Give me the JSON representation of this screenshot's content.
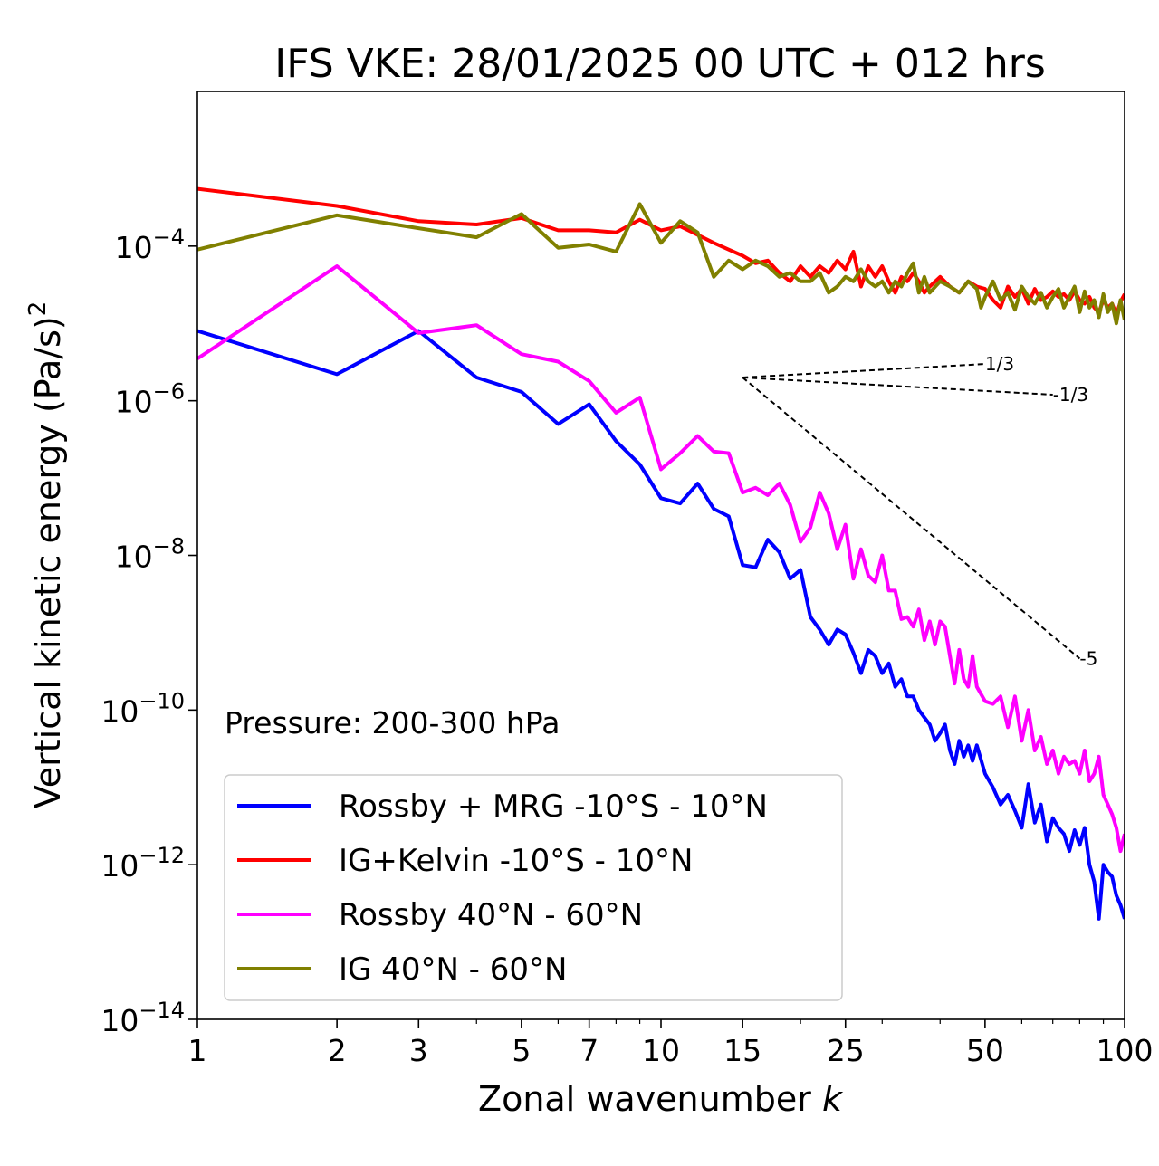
{
  "chart_data": {
    "type": "line",
    "title": "IFS VKE: 28/01/2025 00 UTC + 012 hrs",
    "xlabel": "Zonal wavenumber",
    "xlabel_var": "k",
    "ylabel": "Vertical kinetic energy (Pa/s)",
    "ylabel_exponent": "2",
    "xscale": "log",
    "yscale": "log",
    "xlim": [
      1,
      100
    ],
    "ylim": [
      1e-14,
      0.01
    ],
    "x_ticks": [
      1,
      2,
      3,
      5,
      7,
      10,
      15,
      25,
      50,
      100
    ],
    "x_tick_labels": [
      "1",
      "2",
      "3",
      "5",
      "7",
      "10",
      "15",
      "25",
      "50",
      "100"
    ],
    "y_ticks": [
      1e-14,
      1e-12,
      1e-10,
      1e-08,
      1e-06,
      0.0001
    ],
    "y_tick_base": "10",
    "y_tick_exponents": [
      "−14",
      "−12",
      "−10",
      "−8",
      "−6",
      "−4"
    ],
    "annotation": "Pressure: 200-300 hPa",
    "legend_placement": "lower-left",
    "grid": false,
    "series": [
      {
        "name": "Rossby + MRG -10°S - 10°N",
        "color": "#0000ff",
        "points": [
          [
            1,
            8e-06
          ],
          [
            2,
            2.2e-06
          ],
          [
            3,
            8e-06
          ],
          [
            4,
            2e-06
          ],
          [
            5,
            1.3e-06
          ],
          [
            6,
            5e-07
          ],
          [
            7,
            9e-07
          ],
          [
            8,
            3e-07
          ],
          [
            9,
            1.5e-07
          ],
          [
            10,
            5.5e-08
          ],
          [
            11,
            4.7e-08
          ],
          [
            12,
            8.5e-08
          ],
          [
            13,
            4e-08
          ],
          [
            14,
            3.2e-08
          ],
          [
            15,
            7.5e-09
          ],
          [
            16,
            7e-09
          ],
          [
            17,
            1.6e-08
          ],
          [
            18,
            1.1e-08
          ],
          [
            19,
            5e-09
          ],
          [
            20,
            6.5e-09
          ],
          [
            21,
            1.6e-09
          ],
          [
            22,
            1.1e-09
          ],
          [
            23,
            7e-10
          ],
          [
            24,
            1.1e-09
          ],
          [
            25,
            9.5e-10
          ],
          [
            26,
            5.5e-10
          ],
          [
            27,
            3e-10
          ],
          [
            28,
            6e-10
          ],
          [
            29,
            5e-10
          ],
          [
            30,
            3e-10
          ],
          [
            31,
            4e-10
          ],
          [
            32,
            2e-10
          ],
          [
            33,
            2.5e-10
          ],
          [
            34,
            1.5e-10
          ],
          [
            35,
            1.5e-10
          ],
          [
            36,
            1e-10
          ],
          [
            37,
            8e-11
          ],
          [
            38,
            6.5e-11
          ],
          [
            39,
            4e-11
          ],
          [
            40,
            5e-11
          ],
          [
            41,
            6.5e-11
          ],
          [
            42,
            3e-11
          ],
          [
            43,
            2e-11
          ],
          [
            44,
            4e-11
          ],
          [
            45,
            2.5e-11
          ],
          [
            46,
            3.5e-11
          ],
          [
            47,
            2.2e-11
          ],
          [
            48,
            3.5e-11
          ],
          [
            50,
            1.5e-11
          ],
          [
            52,
            1e-11
          ],
          [
            54,
            6e-12
          ],
          [
            56,
            8e-12
          ],
          [
            58,
            5e-12
          ],
          [
            60,
            3e-12
          ],
          [
            62,
            1.1e-11
          ],
          [
            64,
            3.5e-12
          ],
          [
            66,
            6e-12
          ],
          [
            68,
            2e-12
          ],
          [
            70,
            4e-12
          ],
          [
            72,
            3e-12
          ],
          [
            74,
            2.5e-12
          ],
          [
            76,
            1.5e-12
          ],
          [
            78,
            2.8e-12
          ],
          [
            80,
            1.8e-12
          ],
          [
            82,
            3e-12
          ],
          [
            84,
            1e-12
          ],
          [
            86,
            6e-13
          ],
          [
            88,
            2e-13
          ],
          [
            90,
            1e-12
          ],
          [
            92,
            8e-13
          ],
          [
            94,
            7e-13
          ],
          [
            96,
            4e-13
          ],
          [
            98,
            3e-13
          ],
          [
            100,
            2e-13
          ]
        ]
      },
      {
        "name": "IG+Kelvin -10°S - 10°N",
        "color": "#ff0000",
        "points": [
          [
            1,
            0.00055
          ],
          [
            2,
            0.00033
          ],
          [
            3,
            0.00021
          ],
          [
            4,
            0.00019
          ],
          [
            5,
            0.00023
          ],
          [
            6,
            0.00016
          ],
          [
            7,
            0.00016
          ],
          [
            8,
            0.00015
          ],
          [
            9,
            0.00022
          ],
          [
            10,
            0.00016
          ],
          [
            11,
            0.00018
          ],
          [
            12,
            0.00014
          ],
          [
            13,
            0.00011
          ],
          [
            14,
            9e-05
          ],
          [
            15,
            7.5e-05
          ],
          [
            16,
            6e-05
          ],
          [
            17,
            6.5e-05
          ],
          [
            18,
            4.5e-05
          ],
          [
            19,
            3.5e-05
          ],
          [
            20,
            5.5e-05
          ],
          [
            21,
            4e-05
          ],
          [
            22,
            5.5e-05
          ],
          [
            23,
            4.5e-05
          ],
          [
            24,
            6.5e-05
          ],
          [
            25,
            5e-05
          ],
          [
            26,
            8.5e-05
          ],
          [
            27,
            3e-05
          ],
          [
            28,
            5.5e-05
          ],
          [
            29,
            4e-05
          ],
          [
            30,
            5.5e-05
          ],
          [
            31,
            3.5e-05
          ],
          [
            32,
            2.5e-05
          ],
          [
            33,
            4e-05
          ],
          [
            34,
            3.5e-05
          ],
          [
            35,
            4.5e-05
          ],
          [
            36,
            3.5e-05
          ],
          [
            37,
            2.5e-05
          ],
          [
            38,
            3e-05
          ],
          [
            40,
            4e-05
          ],
          [
            42,
            3e-05
          ],
          [
            44,
            2.5e-05
          ],
          [
            46,
            3.5e-05
          ],
          [
            48,
            3e-05
          ],
          [
            50,
            2.8e-05
          ],
          [
            52,
            2e-05
          ],
          [
            54,
            1.6e-05
          ],
          [
            56,
            3e-05
          ],
          [
            58,
            2.2e-05
          ],
          [
            60,
            2.8e-05
          ],
          [
            62,
            1.8e-05
          ],
          [
            64,
            2.8e-05
          ],
          [
            66,
            2e-05
          ],
          [
            68,
            2.2e-05
          ],
          [
            70,
            2.6e-05
          ],
          [
            72,
            2.2e-05
          ],
          [
            74,
            2.4e-05
          ],
          [
            76,
            2e-05
          ],
          [
            78,
            2.6e-05
          ],
          [
            80,
            2e-05
          ],
          [
            82,
            1.8e-05
          ],
          [
            84,
            2.2e-05
          ],
          [
            86,
            1.6e-05
          ],
          [
            88,
            1.4e-05
          ],
          [
            90,
            2e-05
          ],
          [
            92,
            1.6e-05
          ],
          [
            94,
            1.8e-05
          ],
          [
            96,
            1.3e-05
          ],
          [
            98,
            1.9e-05
          ],
          [
            100,
            2.4e-05
          ]
        ]
      },
      {
        "name": "Rossby 40°N - 60°N",
        "color": "#ff00ff",
        "points": [
          [
            1,
            3.5e-06
          ],
          [
            2,
            5.5e-05
          ],
          [
            3,
            7.5e-06
          ],
          [
            4,
            9.5e-06
          ],
          [
            5,
            4e-06
          ],
          [
            6,
            3.2e-06
          ],
          [
            7,
            1.8e-06
          ],
          [
            8,
            7e-07
          ],
          [
            9,
            1.1e-06
          ],
          [
            10,
            1.3e-07
          ],
          [
            11,
            2.1e-07
          ],
          [
            12,
            3.5e-07
          ],
          [
            13,
            2.2e-07
          ],
          [
            14,
            2.1e-07
          ],
          [
            15,
            6.5e-08
          ],
          [
            16,
            7.5e-08
          ],
          [
            17,
            6e-08
          ],
          [
            18,
            8.5e-08
          ],
          [
            19,
            4.5e-08
          ],
          [
            20,
            1.5e-08
          ],
          [
            21,
            2.3e-08
          ],
          [
            22,
            6.5e-08
          ],
          [
            23,
            3.5e-08
          ],
          [
            24,
            1.2e-08
          ],
          [
            25,
            2.5e-08
          ],
          [
            26,
            5e-09
          ],
          [
            27,
            1.2e-08
          ],
          [
            28,
            5.5e-09
          ],
          [
            29,
            4.5e-09
          ],
          [
            30,
            1e-08
          ],
          [
            31,
            3.5e-09
          ],
          [
            32,
            3.5e-09
          ],
          [
            33,
            1.5e-09
          ],
          [
            34,
            1.6e-09
          ],
          [
            35,
            1.2e-09
          ],
          [
            36,
            2e-09
          ],
          [
            37,
            8e-10
          ],
          [
            38,
            1.4e-09
          ],
          [
            39,
            7e-10
          ],
          [
            40,
            1.4e-09
          ],
          [
            41,
            1.2e-09
          ],
          [
            42,
            5e-10
          ],
          [
            43,
            2.2e-10
          ],
          [
            44,
            6e-10
          ],
          [
            45,
            2.5e-10
          ],
          [
            46,
            2e-10
          ],
          [
            47,
            5e-10
          ],
          [
            48,
            2e-10
          ],
          [
            50,
            1.3e-10
          ],
          [
            52,
            1.2e-10
          ],
          [
            54,
            1.5e-10
          ],
          [
            56,
            6e-11
          ],
          [
            58,
            1.5e-10
          ],
          [
            60,
            4e-11
          ],
          [
            62,
            1e-10
          ],
          [
            64,
            3e-11
          ],
          [
            66,
            4.5e-11
          ],
          [
            68,
            2e-11
          ],
          [
            70,
            3e-11
          ],
          [
            72,
            1.5e-11
          ],
          [
            74,
            2.5e-11
          ],
          [
            76,
            2e-11
          ],
          [
            78,
            2.2e-11
          ],
          [
            80,
            1.5e-11
          ],
          [
            82,
            3e-11
          ],
          [
            84,
            1.2e-11
          ],
          [
            86,
            1.5e-11
          ],
          [
            88,
            2.5e-11
          ],
          [
            90,
            8e-12
          ],
          [
            92,
            6e-12
          ],
          [
            94,
            4.5e-12
          ],
          [
            96,
            3e-12
          ],
          [
            98,
            1.5e-12
          ],
          [
            100,
            2.5e-12
          ]
        ]
      },
      {
        "name": "IG 40°N - 60°N",
        "color": "#808000",
        "points": [
          [
            1,
            9e-05
          ],
          [
            2,
            0.00025
          ],
          [
            3,
            0.00017
          ],
          [
            4,
            0.00013
          ],
          [
            5,
            0.00026
          ],
          [
            6,
            9.5e-05
          ],
          [
            7,
            0.000105
          ],
          [
            8,
            8.5e-05
          ],
          [
            9,
            0.00035
          ],
          [
            10,
            0.00011
          ],
          [
            11,
            0.00021
          ],
          [
            12,
            0.00015
          ],
          [
            13,
            4e-05
          ],
          [
            14,
            6.5e-05
          ],
          [
            15,
            5e-05
          ],
          [
            16,
            6.5e-05
          ],
          [
            17,
            5.5e-05
          ],
          [
            18,
            4e-05
          ],
          [
            19,
            4.5e-05
          ],
          [
            20,
            3.5e-05
          ],
          [
            21,
            3.5e-05
          ],
          [
            22,
            4.5e-05
          ],
          [
            23,
            2.5e-05
          ],
          [
            24,
            3e-05
          ],
          [
            25,
            4e-05
          ],
          [
            26,
            3.5e-05
          ],
          [
            27,
            5e-05
          ],
          [
            28,
            3.5e-05
          ],
          [
            29,
            3e-05
          ],
          [
            30,
            3.5e-05
          ],
          [
            31,
            2.5e-05
          ],
          [
            32,
            3.5e-05
          ],
          [
            33,
            3e-05
          ],
          [
            34,
            4.5e-05
          ],
          [
            35,
            6e-05
          ],
          [
            36,
            2.5e-05
          ],
          [
            37,
            4e-05
          ],
          [
            38,
            2.5e-05
          ],
          [
            40,
            3.5e-05
          ],
          [
            42,
            3e-05
          ],
          [
            44,
            2.5e-05
          ],
          [
            46,
            3.5e-05
          ],
          [
            48,
            2.8e-05
          ],
          [
            49,
            1.6e-05
          ],
          [
            50,
            2.2e-05
          ],
          [
            52,
            3.5e-05
          ],
          [
            54,
            2e-05
          ],
          [
            56,
            2.5e-05
          ],
          [
            58,
            1.5e-05
          ],
          [
            60,
            3e-05
          ],
          [
            62,
            2.2e-05
          ],
          [
            64,
            1.8e-05
          ],
          [
            66,
            2.5e-05
          ],
          [
            68,
            1.6e-05
          ],
          [
            70,
            2.2e-05
          ],
          [
            72,
            2.8e-05
          ],
          [
            74,
            1.6e-05
          ],
          [
            76,
            2.2e-05
          ],
          [
            78,
            3e-05
          ],
          [
            80,
            1.4e-05
          ],
          [
            82,
            2.6e-05
          ],
          [
            84,
            1.6e-05
          ],
          [
            86,
            2e-05
          ],
          [
            88,
            1.2e-05
          ],
          [
            90,
            2.4e-05
          ],
          [
            92,
            1.4e-05
          ],
          [
            94,
            1.8e-05
          ],
          [
            96,
            1e-05
          ],
          [
            98,
            2e-05
          ],
          [
            100,
            1.1e-05
          ]
        ]
      }
    ],
    "reference_lines": [
      {
        "label": "1/3",
        "origin": [
          15,
          2e-06
        ],
        "slope": 0.333333,
        "x_end": 50
      },
      {
        "label": "-1/3",
        "origin": [
          15,
          2e-06
        ],
        "slope": -0.333333,
        "x_end": 70
      },
      {
        "label": "-5",
        "origin": [
          15,
          2e-06
        ],
        "slope": -5,
        "x_end": 80
      }
    ]
  }
}
